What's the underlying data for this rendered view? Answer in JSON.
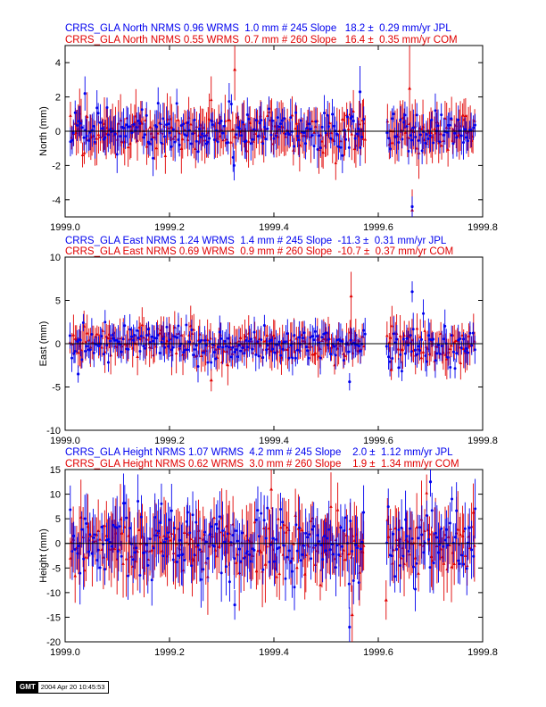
{
  "colors": {
    "series1": "#0000ee",
    "series2": "#e00000",
    "axis": "#000000",
    "zero": "#000000"
  },
  "series_markers": {
    "series1": "circle",
    "series2": "triangle"
  },
  "chart_data": [
    {
      "type": "scatter",
      "legend": [
        {
          "name": "JPL",
          "text": "CRRS_GLA North NRMS 0.96 WRMS  1.0 mm # 245 Slope   18.2 ±  0.29 mm/yr JPL"
        },
        {
          "name": "COM",
          "text": "CRRS_GLA North NRMS 0.55 WRMS  0.7 mm # 260 Slope   16.4 ±  0.35 mm/yr COM"
        }
      ],
      "xlabel": "",
      "ylabel": "North (mm)",
      "xlim": [
        1999.0,
        1999.8
      ],
      "ylim": [
        -5,
        5
      ],
      "x_ticks": [
        "1999.0",
        "1999.2",
        "1999.4",
        "1999.6",
        "1999.8"
      ],
      "y_ticks": [
        "-4",
        "-2",
        "0",
        "2",
        "4"
      ],
      "y_tick_values": [
        -4,
        -2,
        0,
        2,
        4
      ],
      "x_range": [
        1999.01,
        1999.785
      ],
      "gap": [
        1999.575,
        1999.615
      ],
      "series": [
        {
          "name": "JPL",
          "n": 245,
          "scatter_sd": 0.65,
          "err_mean": 0.8
        },
        {
          "name": "COM",
          "n": 260,
          "scatter_sd": 0.55,
          "err_mean": 1.1
        }
      ],
      "outliers": [
        {
          "series": "COM",
          "x": 1999.325,
          "y": 3.6,
          "err": 1.8
        },
        {
          "series": "COM",
          "x": 1999.665,
          "y": -4.6,
          "err": 1.2
        },
        {
          "series": "JPL",
          "x": 1999.665,
          "y": -4.4,
          "err": 0.6
        },
        {
          "series": "COM",
          "x": 1999.66,
          "y": 2.5,
          "err": 2.6
        },
        {
          "series": "JPL",
          "x": 1999.038,
          "y": 2.2,
          "err": 1.0
        },
        {
          "series": "JPL",
          "x": 1999.565,
          "y": 2.3,
          "err": 1.5
        }
      ],
      "grid": false
    },
    {
      "type": "scatter",
      "legend": [
        {
          "name": "JPL",
          "text": "CRRS_GLA East NRMS 1.24 WRMS  1.4 mm # 245 Slope  -11.3 ±  0.31 mm/yr JPL"
        },
        {
          "name": "COM",
          "text": "CRRS_GLA East NRMS 0.69 WRMS  0.9 mm # 260 Slope  -10.7 ±  0.37 mm/yr COM"
        }
      ],
      "xlabel": "",
      "ylabel": "East (mm)",
      "xlim": [
        1999.0,
        1999.8
      ],
      "ylim": [
        -10,
        10
      ],
      "x_ticks": [
        "1999.0",
        "1999.2",
        "1999.4",
        "1999.6",
        "1999.8"
      ],
      "y_ticks": [
        "-10",
        "-5",
        "0",
        "5",
        "10"
      ],
      "y_tick_values": [
        -10,
        -5,
        0,
        5,
        10
      ],
      "x_range": [
        1999.01,
        1999.785
      ],
      "gap": [
        1999.575,
        1999.615
      ],
      "series": [
        {
          "name": "JPL",
          "n": 245,
          "scatter_sd": 1.1,
          "err_mean": 1.4
        },
        {
          "name": "COM",
          "n": 260,
          "scatter_sd": 0.9,
          "err_mean": 1.7
        }
      ],
      "outliers": [
        {
          "series": "COM",
          "x": 1999.548,
          "y": 5.5,
          "err": 2.8
        },
        {
          "series": "JPL",
          "x": 1999.665,
          "y": 6.0,
          "err": 1.2
        },
        {
          "series": "COM",
          "x": 1999.28,
          "y": -4.2,
          "err": 1.3
        },
        {
          "series": "JPL",
          "x": 1999.025,
          "y": -3.5,
          "err": 1.0
        },
        {
          "series": "JPL",
          "x": 1999.545,
          "y": -4.4,
          "err": 1.0
        },
        {
          "series": "COM",
          "x": 1999.625,
          "y": -3.0,
          "err": 1.2
        }
      ],
      "grid": false
    },
    {
      "type": "scatter",
      "legend": [
        {
          "name": "JPL",
          "text": "CRRS_GLA Height NRMS 1.07 WRMS  4.2 mm # 245 Slope    2.0 ±  1.12 mm/yr JPL"
        },
        {
          "name": "COM",
          "text": "CRRS_GLA Height NRMS 0.62 WRMS  3.0 mm # 260 Slope    1.9 ±  1.34 mm/yr COM"
        }
      ],
      "xlabel": "",
      "ylabel": "Height (mm)",
      "xlim": [
        1999.0,
        1999.8
      ],
      "ylim": [
        -20,
        15
      ],
      "x_ticks": [
        "1999.0",
        "1999.2",
        "1999.4",
        "1999.6",
        "1999.8"
      ],
      "y_ticks": [
        "-20",
        "-15",
        "-10",
        "-5",
        "0",
        "5",
        "10",
        "15"
      ],
      "y_tick_values": [
        -20,
        -15,
        -10,
        -5,
        0,
        5,
        10,
        15
      ],
      "x_range": [
        1999.01,
        1999.785
      ],
      "gap": [
        1999.575,
        1999.615
      ],
      "series": [
        {
          "name": "JPL",
          "n": 245,
          "scatter_sd": 3.6,
          "err_mean": 4.5
        },
        {
          "name": "COM",
          "n": 260,
          "scatter_sd": 2.8,
          "err_mean": 5.5
        }
      ],
      "outliers": [
        {
          "series": "JPL",
          "x": 1999.545,
          "y": -17.0,
          "err": 4.0
        },
        {
          "series": "COM",
          "x": 1999.55,
          "y": -14.5,
          "err": 6.0
        },
        {
          "series": "JPL",
          "x": 1999.325,
          "y": -12.5,
          "err": 3.0
        },
        {
          "series": "JPL",
          "x": 1999.7,
          "y": 12.5,
          "err": 3.0
        },
        {
          "series": "COM",
          "x": 1999.395,
          "y": 11.0,
          "err": 4.0
        },
        {
          "series": "COM",
          "x": 1999.615,
          "y": -11.5,
          "err": 4.0
        }
      ],
      "grid": false
    }
  ],
  "footer": {
    "logo": "GMT",
    "timestamp": "2004 Apr 20 10:45:53"
  }
}
